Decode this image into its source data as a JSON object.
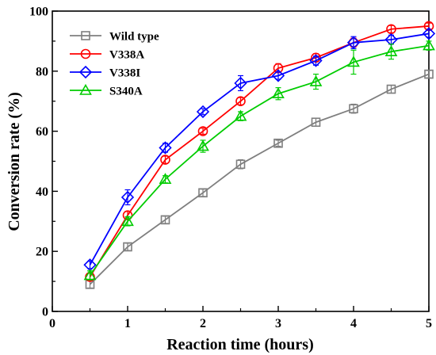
{
  "chart_data": {
    "type": "line",
    "title": "",
    "xlabel": "Reaction time (hours)",
    "ylabel": "Conversion rate (%)",
    "xlim": [
      0,
      5
    ],
    "ylim": [
      0,
      100
    ],
    "xticks": [
      "0",
      "1",
      "2",
      "3",
      "4",
      "5"
    ],
    "yticks": [
      "0",
      "20",
      "40",
      "60",
      "80",
      "100"
    ],
    "grid": false,
    "legend_position": "top-left",
    "x": [
      0.5,
      1,
      1.5,
      2,
      2.5,
      3,
      3.5,
      4,
      4.5,
      5
    ],
    "series": [
      {
        "name": "Wild type",
        "marker": "square",
        "color": "#7f7f7f",
        "values": [
          9,
          21.5,
          30.5,
          39.5,
          49,
          56,
          63,
          67.5,
          74,
          79
        ],
        "errors": [
          1.2,
          1.2,
          1.2,
          1.2,
          1.5,
          1.0,
          1.3,
          1.5,
          1.3,
          1.2
        ]
      },
      {
        "name": "V338A",
        "marker": "circle",
        "color": "#ff0000",
        "values": [
          11.5,
          32,
          50.5,
          60,
          70,
          81,
          84.5,
          89.5,
          94,
          95
        ],
        "errors": [
          1.2,
          1.3,
          1.2,
          1.0,
          1.2,
          1.5,
          1.3,
          1.5,
          1.2,
          1.0
        ]
      },
      {
        "name": "V338I",
        "marker": "diamond",
        "color": "#0000ff",
        "values": [
          15.5,
          38,
          54.5,
          66.5,
          76,
          78.5,
          83.5,
          89.5,
          90.5,
          92.5
        ],
        "errors": [
          1.2,
          2.5,
          1.5,
          1.0,
          2.5,
          1.2,
          1.5,
          2.0,
          1.5,
          1.2
        ]
      },
      {
        "name": "S340A",
        "marker": "triangle",
        "color": "#00cc00",
        "values": [
          12,
          30,
          44,
          55,
          65,
          72.5,
          76.5,
          83,
          86.5,
          88.5
        ],
        "errors": [
          1.5,
          1.5,
          1.2,
          2.0,
          1.5,
          2.0,
          2.5,
          4.0,
          2.5,
          1.5
        ]
      }
    ]
  }
}
